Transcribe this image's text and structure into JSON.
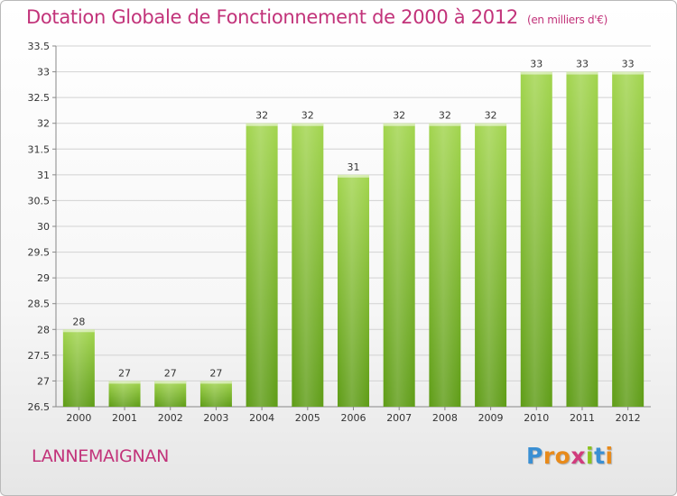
{
  "header": {
    "title": "Dotation Globale de Fonctionnement de 2000 à 2012",
    "unit": "(en milliers d'€)"
  },
  "footer": {
    "commune": "LANNEMAIGNAN",
    "logo_letters": [
      "P",
      "r",
      "o",
      "x",
      "i",
      "t",
      "i"
    ]
  },
  "colors": {
    "title": "#c2337a",
    "bar_top": "#9ed24a",
    "bar_bottom": "#5f9e17",
    "grid": "#cfcfcf"
  },
  "chart_data": {
    "type": "bar",
    "categories": [
      "2000",
      "2001",
      "2002",
      "2003",
      "2004",
      "2005",
      "2006",
      "2007",
      "2008",
      "2009",
      "2010",
      "2011",
      "2012"
    ],
    "values": [
      28,
      27,
      27,
      27,
      32,
      32,
      31,
      32,
      32,
      32,
      33,
      33,
      33
    ],
    "value_labels": [
      "28",
      "27",
      "27",
      "27",
      "32",
      "32",
      "31",
      "32",
      "32",
      "32",
      "33",
      "33",
      "33"
    ],
    "ylim": [
      26.5,
      33.5
    ],
    "yticks": [
      "26.5",
      "27",
      "27.5",
      "28",
      "28.5",
      "29",
      "29.5",
      "30",
      "30.5",
      "31",
      "31.5",
      "32",
      "32.5",
      "33",
      "33.5"
    ],
    "grid": true,
    "xlabel": "",
    "ylabel": ""
  }
}
